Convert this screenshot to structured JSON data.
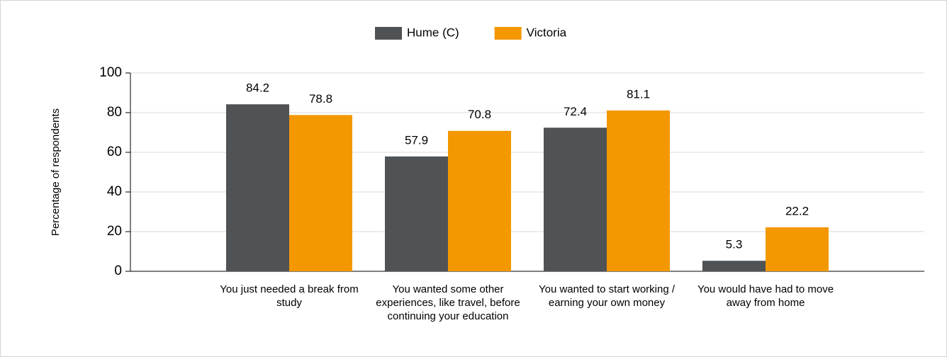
{
  "chart_data": {
    "type": "bar",
    "y_label": "Percentage of respondents",
    "categories": [
      "You just needed a break from study",
      "You wanted some other experiences, like travel, before continuing your education",
      "You wanted to start working / earning your own money",
      "You would have had to move away from home"
    ],
    "series": [
      {
        "name": "Hume (C)",
        "color": "#505355",
        "values": [
          84.2,
          57.9,
          72.4,
          5.3
        ]
      },
      {
        "name": "Victoria",
        "color": "#f39800",
        "values": [
          78.8,
          70.8,
          81.1,
          22.2
        ]
      }
    ],
    "ylim": [
      0,
      100
    ],
    "yticks": [
      0,
      20,
      40,
      60,
      80,
      100
    ],
    "grid": true,
    "legend": "top"
  }
}
